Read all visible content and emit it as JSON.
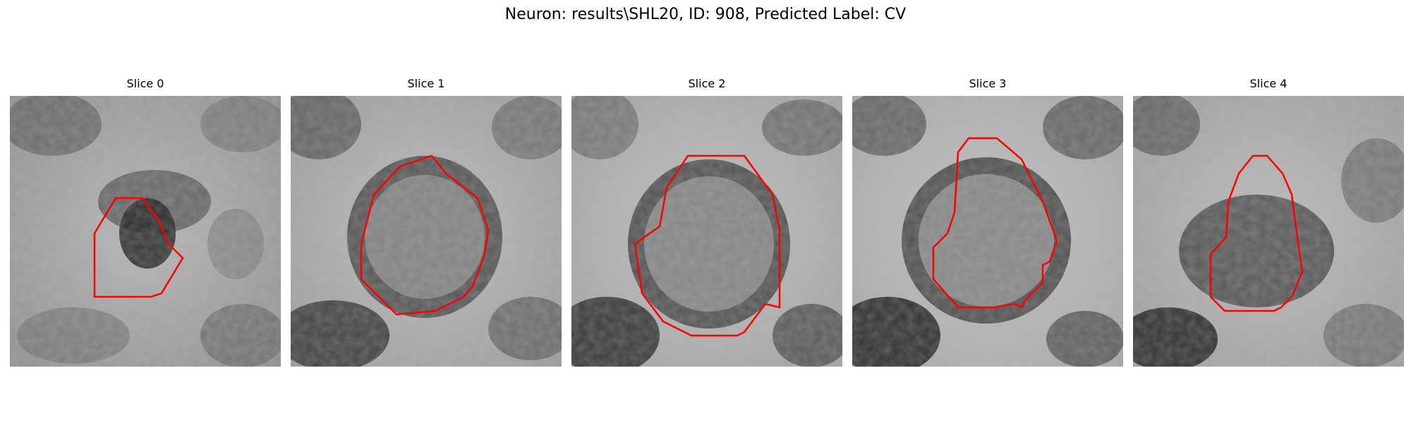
{
  "figure": {
    "title": "Neuron: results\\SHL20, ID: 908, Predicted Label: CV"
  },
  "contour_color": "#ff0000",
  "slices": [
    {
      "title": "Slice 0"
    },
    {
      "title": "Slice 1"
    },
    {
      "title": "Slice 2"
    },
    {
      "title": "Slice 3"
    },
    {
      "title": "Slice 4"
    }
  ]
}
